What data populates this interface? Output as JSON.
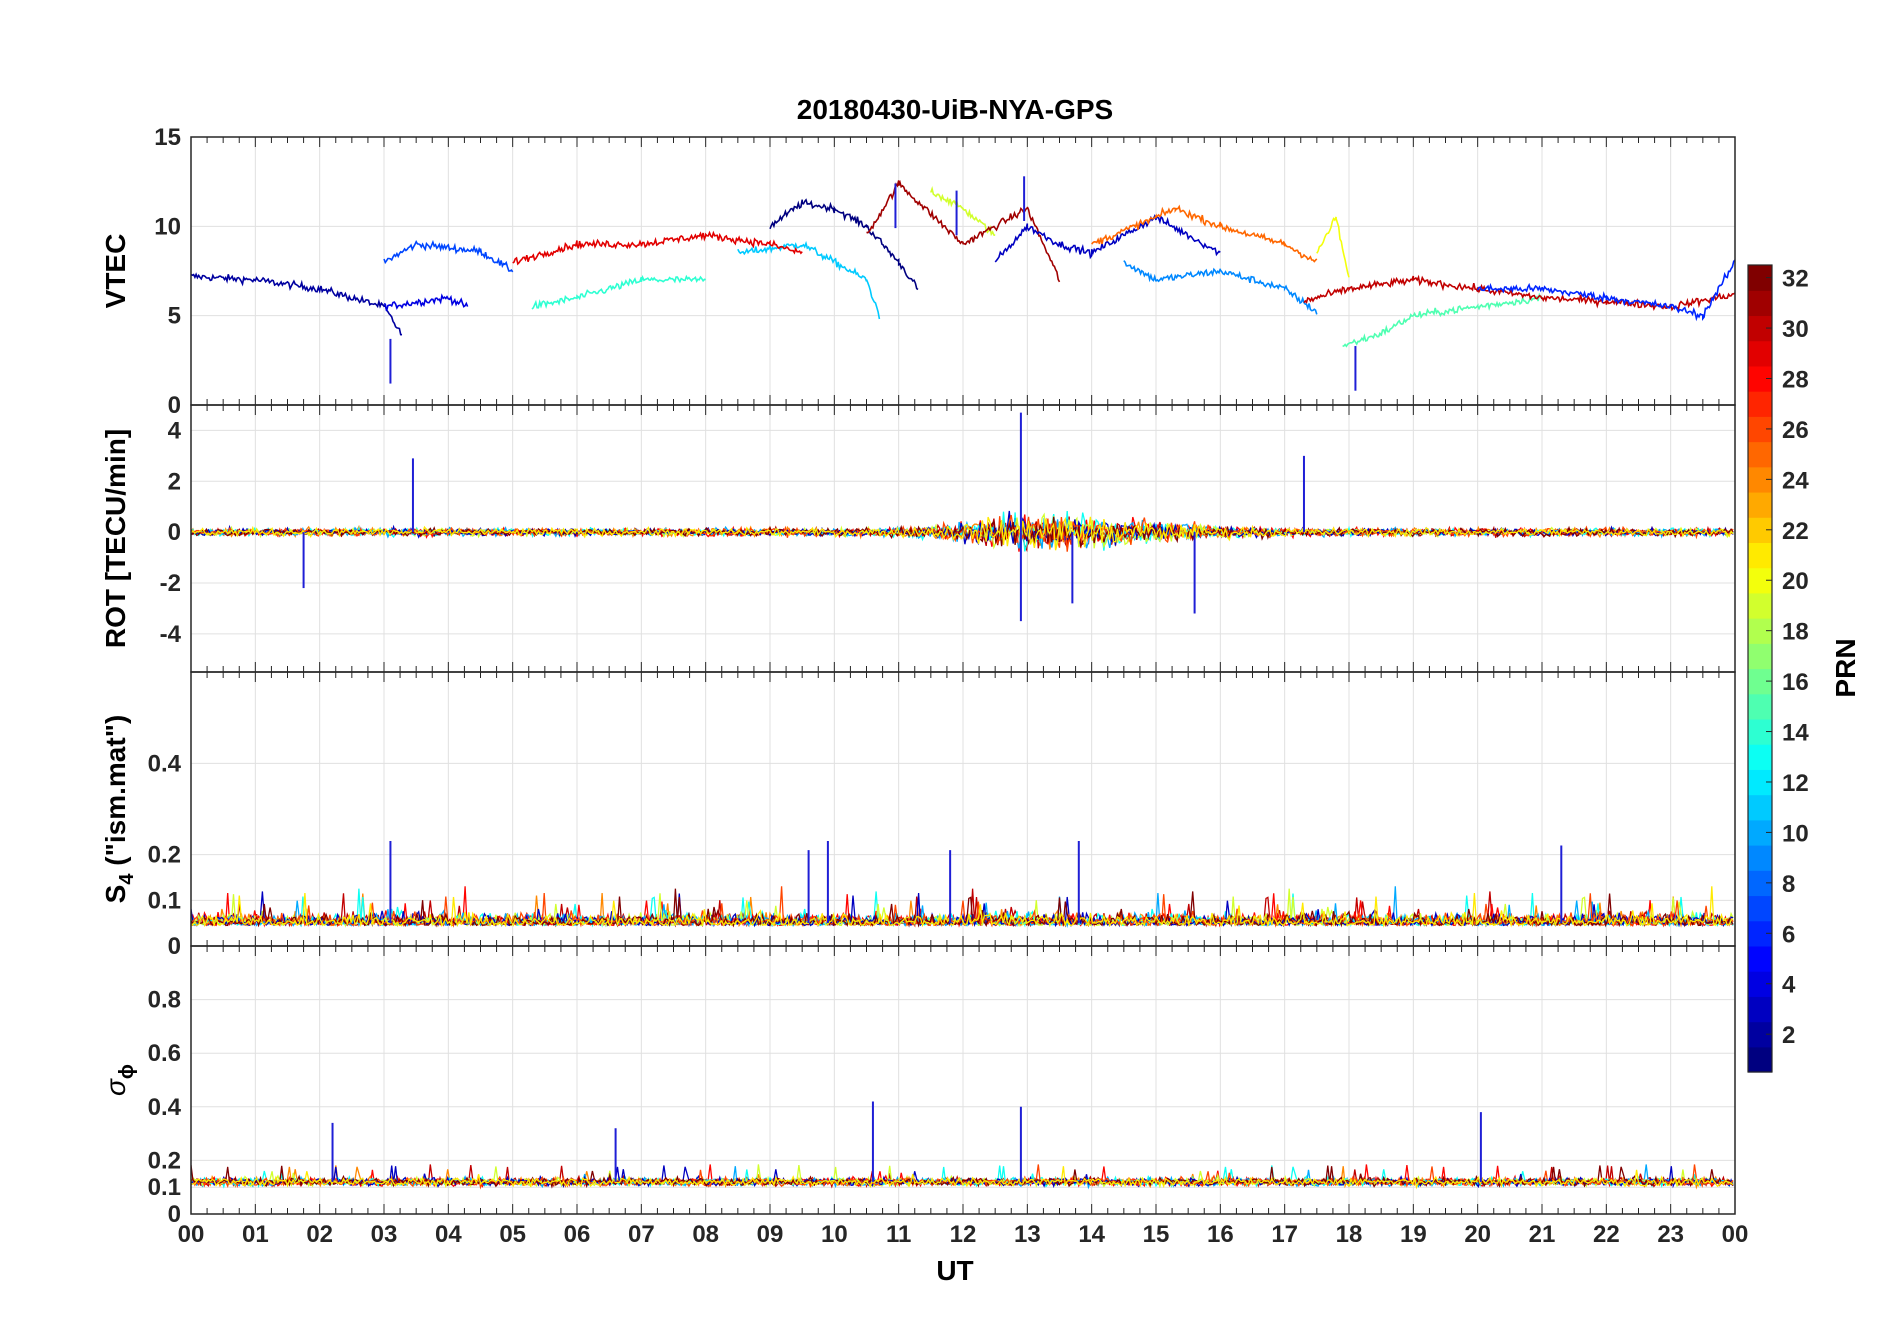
{
  "chart_data": {
    "type": "line",
    "title": "20180430-UiB-NYA-GPS",
    "xlabel": "UT",
    "x_tick_labels": [
      "00",
      "01",
      "02",
      "03",
      "04",
      "05",
      "06",
      "07",
      "08",
      "09",
      "10",
      "11",
      "12",
      "13",
      "14",
      "15",
      "16",
      "17",
      "18",
      "19",
      "20",
      "21",
      "22",
      "23",
      "00"
    ],
    "xlim": [
      0,
      24
    ],
    "grid": true,
    "colormap": "jet",
    "panels": [
      {
        "ylabel": "VTEC",
        "ylim": [
          0,
          15
        ],
        "yticks": [
          0,
          5,
          10,
          15
        ],
        "notable_points": [
          {
            "x": 12.95,
            "y": 12.8
          },
          {
            "x": 10.95,
            "y": 12.4
          },
          {
            "x": 11.9,
            "y": 12.0
          },
          {
            "x": 3.1,
            "y": 3.7
          },
          {
            "x": 18.1,
            "y": 3.3
          }
        ],
        "series": [
          {
            "prn": 2,
            "x": [
              0,
              1,
              2,
              3,
              3.3
            ],
            "y": [
              7.2,
              7.0,
              6.5,
              5.5,
              3.8
            ]
          },
          {
            "prn": 4,
            "x": [
              3,
              4,
              4.3
            ],
            "y": [
              5.5,
              6.0,
              5.5
            ]
          },
          {
            "prn": 7,
            "x": [
              3,
              3.5,
              4.5,
              5
            ],
            "y": [
              8.0,
              9.0,
              8.6,
              7.5
            ]
          },
          {
            "prn": 1,
            "x": [
              9,
              9.5,
              10,
              10.5,
              11,
              11.3
            ],
            "y": [
              10.0,
              11.3,
              11.0,
              10.0,
              8.0,
              6.5
            ]
          },
          {
            "prn": 11,
            "x": [
              8.5,
              9.5,
              10.5,
              10.7
            ],
            "y": [
              8.5,
              9.0,
              7.0,
              5.0
            ]
          },
          {
            "prn": 14,
            "x": [
              5.3,
              6,
              7,
              8
            ],
            "y": [
              5.5,
              6.0,
              7.0,
              7.0
            ]
          },
          {
            "prn": 19,
            "x": [
              11.5,
              12,
              12.5
            ],
            "y": [
              12.0,
              11.0,
              9.5
            ]
          },
          {
            "prn": 31,
            "x": [
              10.5,
              11,
              12,
              13,
              13.5
            ],
            "y": [
              9.5,
              12.4,
              9.0,
              11.0,
              7.0
            ]
          },
          {
            "prn": 3,
            "x": [
              12.5,
              13,
              13.5,
              14,
              15,
              16
            ],
            "y": [
              8.0,
              10.0,
              9.0,
              8.5,
              10.5,
              8.5
            ]
          },
          {
            "prn": 9,
            "x": [
              14.5,
              15,
              16,
              17,
              17.5
            ],
            "y": [
              8.0,
              7.0,
              7.5,
              6.5,
              5.2
            ]
          },
          {
            "prn": 15,
            "x": [
              17.9,
              18.5,
              19,
              20,
              21
            ],
            "y": [
              3.3,
              4.0,
              5.0,
              5.5,
              6.0
            ]
          },
          {
            "prn": 25,
            "x": [
              14,
              15,
              15.3,
              16,
              17,
              17.5
            ],
            "y": [
              9.0,
              10.5,
              11.0,
              10.0,
              9.0,
              8.0
            ]
          },
          {
            "prn": 20,
            "x": [
              17.5,
              17.8,
              18
            ],
            "y": [
              8.5,
              10.5,
              7.0
            ]
          },
          {
            "prn": 29,
            "x": [
              5,
              6,
              7,
              8,
              9,
              9.5
            ],
            "y": [
              8.0,
              9.0,
              9.0,
              9.5,
              9.0,
              8.5
            ]
          },
          {
            "prn": 30,
            "x": [
              17.3,
              18,
              19,
              20,
              21,
              22,
              23,
              24
            ],
            "y": [
              5.8,
              6.5,
              7.0,
              6.5,
              6.0,
              5.8,
              5.5,
              6.2
            ]
          },
          {
            "prn": 6,
            "x": [
              20,
              21,
              22,
              23,
              23.5,
              24
            ],
            "y": [
              6.5,
              6.5,
              6.0,
              5.5,
              5.0,
              8.0
            ]
          }
        ]
      },
      {
        "ylabel": "ROT [TECU/min]",
        "ylim": [
          -5.5,
          5
        ],
        "yticks": [
          -4,
          -2,
          0,
          2,
          4
        ],
        "notable_points": [
          {
            "x": 12.9,
            "y": 4.7
          },
          {
            "x": 12.9,
            "y": -3.5
          },
          {
            "x": 3.45,
            "y": 2.9
          },
          {
            "x": 15.6,
            "y": -3.2
          },
          {
            "x": 17.3,
            "y": 3.0
          },
          {
            "x": 1.75,
            "y": -2.2
          },
          {
            "x": 13.7,
            "y": -2.8
          }
        ]
      },
      {
        "ylabel": "S",
        "ylabel_subscript": "4",
        "ylabel_suffix": " (\"ism.mat\")",
        "ylim": [
          0,
          0.6
        ],
        "yticks": [
          0,
          0.1,
          0.2,
          0.4
        ],
        "notable_points": [
          {
            "x": 3.1,
            "y": 0.23
          },
          {
            "x": 9.9,
            "y": 0.23
          },
          {
            "x": 13.8,
            "y": 0.23
          },
          {
            "x": 21.3,
            "y": 0.22
          },
          {
            "x": 11.8,
            "y": 0.21
          },
          {
            "x": 9.6,
            "y": 0.21
          }
        ]
      },
      {
        "ylabel": "σ",
        "ylabel_subscript": "ϕ",
        "ylim": [
          0,
          1
        ],
        "yticks": [
          0,
          0.1,
          0.2,
          0.4,
          0.6,
          0.8
        ],
        "notable_points": [
          {
            "x": 10.6,
            "y": 0.42
          },
          {
            "x": 12.9,
            "y": 0.4
          },
          {
            "x": 20.05,
            "y": 0.38
          },
          {
            "x": 2.2,
            "y": 0.34
          },
          {
            "x": 6.6,
            "y": 0.32
          }
        ]
      }
    ],
    "colorbar": {
      "label": "PRN",
      "range": [
        1,
        32
      ],
      "ticks": [
        2,
        4,
        6,
        8,
        10,
        12,
        14,
        16,
        18,
        20,
        22,
        24,
        26,
        28,
        30,
        32
      ]
    }
  }
}
